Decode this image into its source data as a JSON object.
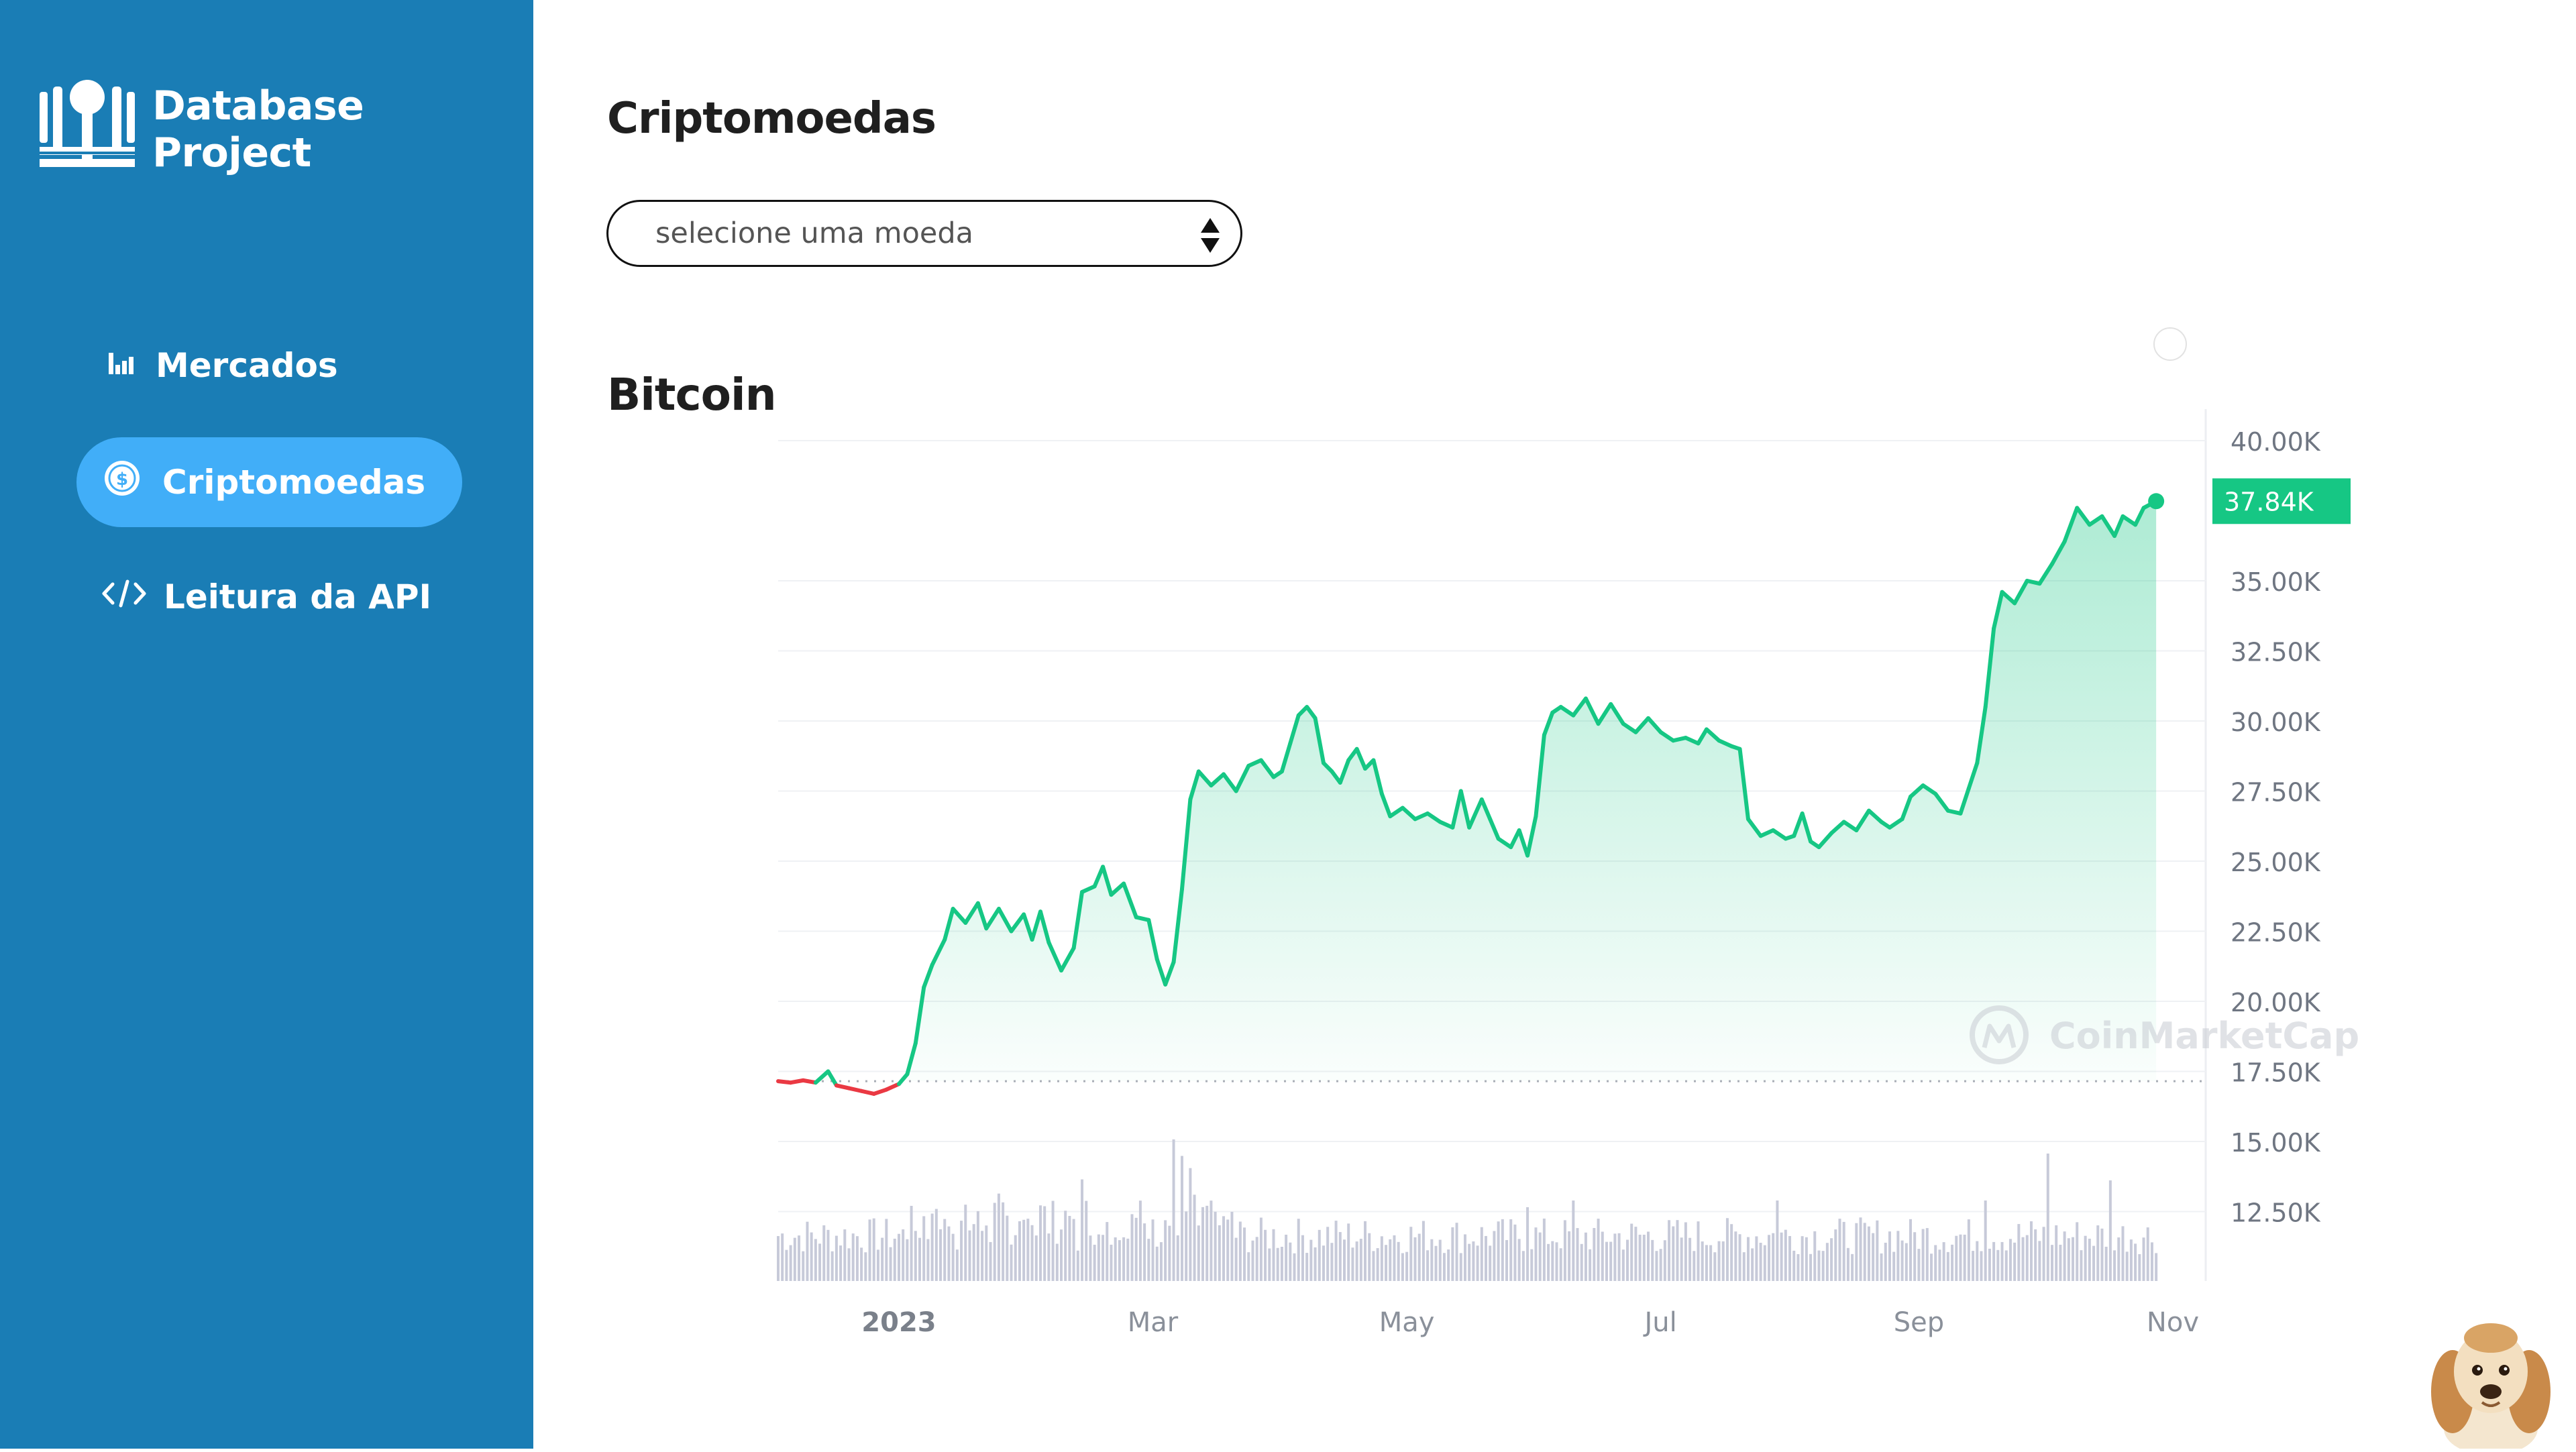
{
  "app": {
    "name": "Database Project"
  },
  "sidebar": {
    "items": [
      {
        "label": "Mercados",
        "icon": "bar-chart-icon",
        "active": false
      },
      {
        "label": "Criptomoedas",
        "icon": "dollar-coin-icon",
        "active": true
      },
      {
        "label": "Leitura da API",
        "icon": "code-icon",
        "active": false
      }
    ]
  },
  "main": {
    "title": "Criptomoedas",
    "select": {
      "value": "selecione uma moeda"
    },
    "coin_title": "Bitcoin",
    "watermark": "CoinMarketCap"
  },
  "colors": {
    "sidebar": "#1a7db5",
    "active_nav": "#41aef8",
    "up_line": "#16c784",
    "down_line": "#ea3943",
    "volume": "#c7cad9"
  },
  "chart_data": {
    "type": "line",
    "series": [
      {
        "values": [
          [
            0,
            17150
          ],
          [
            3,
            17100
          ],
          [
            6,
            17180
          ],
          [
            9,
            17100
          ],
          [
            12,
            17500
          ],
          [
            14,
            17000
          ],
          [
            17,
            16900
          ],
          [
            20,
            16800
          ],
          [
            23,
            16700
          ],
          [
            26,
            16850
          ],
          [
            29,
            17050
          ],
          [
            31,
            17400
          ],
          [
            33,
            18500
          ],
          [
            35,
            20500
          ],
          [
            37,
            21300
          ],
          [
            40,
            22200
          ],
          [
            42,
            23300
          ],
          [
            45,
            22800
          ],
          [
            48,
            23500
          ],
          [
            50,
            22600
          ],
          [
            53,
            23300
          ],
          [
            56,
            22500
          ],
          [
            59,
            23100
          ],
          [
            61,
            22200
          ],
          [
            63,
            23200
          ],
          [
            65,
            22100
          ],
          [
            68,
            21100
          ],
          [
            71,
            21900
          ],
          [
            73,
            23900
          ],
          [
            76,
            24100
          ],
          [
            78,
            24800
          ],
          [
            80,
            23800
          ],
          [
            83,
            24200
          ],
          [
            86,
            23000
          ],
          [
            89,
            22900
          ],
          [
            91,
            21500
          ],
          [
            93,
            20600
          ],
          [
            95,
            21400
          ],
          [
            97,
            24000
          ],
          [
            99,
            27200
          ],
          [
            101,
            28200
          ],
          [
            104,
            27700
          ],
          [
            107,
            28100
          ],
          [
            110,
            27500
          ],
          [
            113,
            28400
          ],
          [
            116,
            28600
          ],
          [
            119,
            28000
          ],
          [
            121,
            28200
          ],
          [
            123,
            29200
          ],
          [
            125,
            30200
          ],
          [
            127,
            30500
          ],
          [
            129,
            30100
          ],
          [
            131,
            28500
          ],
          [
            133,
            28200
          ],
          [
            135,
            27800
          ],
          [
            137,
            28600
          ],
          [
            139,
            29000
          ],
          [
            141,
            28300
          ],
          [
            143,
            28600
          ],
          [
            145,
            27400
          ],
          [
            147,
            26600
          ],
          [
            150,
            26900
          ],
          [
            153,
            26500
          ],
          [
            156,
            26700
          ],
          [
            159,
            26400
          ],
          [
            162,
            26200
          ],
          [
            164,
            27500
          ],
          [
            166,
            26200
          ],
          [
            169,
            27200
          ],
          [
            171,
            26500
          ],
          [
            173,
            25800
          ],
          [
            176,
            25500
          ],
          [
            178,
            26100
          ],
          [
            180,
            25200
          ],
          [
            182,
            26600
          ],
          [
            184,
            29500
          ],
          [
            186,
            30300
          ],
          [
            188,
            30500
          ],
          [
            191,
            30200
          ],
          [
            194,
            30800
          ],
          [
            197,
            29900
          ],
          [
            200,
            30600
          ],
          [
            203,
            29900
          ],
          [
            206,
            29600
          ],
          [
            209,
            30100
          ],
          [
            212,
            29600
          ],
          [
            215,
            29300
          ],
          [
            218,
            29400
          ],
          [
            221,
            29200
          ],
          [
            223,
            29700
          ],
          [
            226,
            29300
          ],
          [
            229,
            29100
          ],
          [
            231,
            29000
          ],
          [
            233,
            26500
          ],
          [
            236,
            25900
          ],
          [
            239,
            26100
          ],
          [
            242,
            25800
          ],
          [
            244,
            25900
          ],
          [
            246,
            26700
          ],
          [
            248,
            25700
          ],
          [
            250,
            25500
          ],
          [
            253,
            26000
          ],
          [
            256,
            26400
          ],
          [
            259,
            26100
          ],
          [
            262,
            26800
          ],
          [
            265,
            26400
          ],
          [
            267,
            26200
          ],
          [
            270,
            26500
          ],
          [
            272,
            27300
          ],
          [
            275,
            27700
          ],
          [
            278,
            27400
          ],
          [
            281,
            26800
          ],
          [
            284,
            26700
          ],
          [
            286,
            27600
          ],
          [
            288,
            28500
          ],
          [
            290,
            30500
          ],
          [
            292,
            33300
          ],
          [
            294,
            34600
          ],
          [
            297,
            34200
          ],
          [
            300,
            35000
          ],
          [
            303,
            34900
          ],
          [
            306,
            35600
          ],
          [
            309,
            36400
          ],
          [
            312,
            37600
          ],
          [
            315,
            37000
          ],
          [
            318,
            37300
          ],
          [
            321,
            36600
          ],
          [
            323,
            37300
          ],
          [
            326,
            37000
          ],
          [
            328,
            37600
          ],
          [
            331,
            37840
          ]
        ]
      }
    ],
    "baseline": 17150,
    "last_price_label": "37.84K",
    "x_ticks": [
      "2023",
      "Mar",
      "May",
      "Jul",
      "Sep",
      "Nov"
    ],
    "y_ticks": [
      "40.00K",
      "35.00K",
      "32.50K",
      "30.00K",
      "27.50K",
      "25.00K",
      "22.50K",
      "20.00K",
      "17.50K",
      "15.00K",
      "12.50K"
    ],
    "ylim": [
      10000,
      40000
    ],
    "y_axis_position": "right",
    "grid": true
  }
}
